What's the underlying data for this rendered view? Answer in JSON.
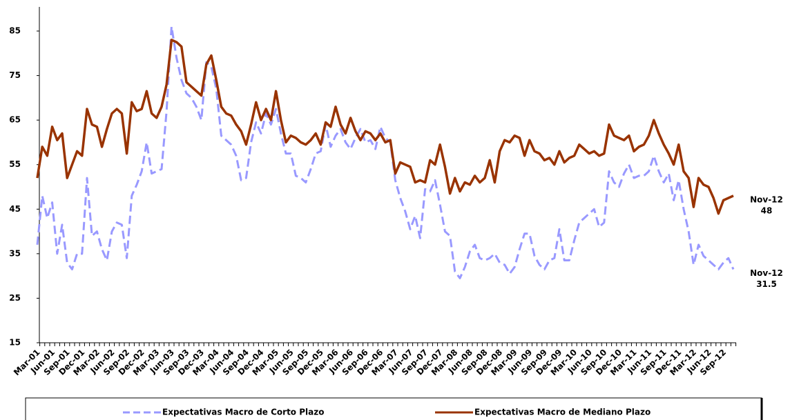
{
  "chart_data": {
    "type": "line",
    "categories": [
      "Mar-01",
      null,
      null,
      "Jun-01",
      null,
      null,
      "Sep-01",
      null,
      null,
      "Dec-01",
      null,
      null,
      "Mar-02",
      null,
      null,
      "Jun-02",
      null,
      null,
      "Sep-02",
      null,
      null,
      "Dec-02",
      null,
      null,
      "Mar-03",
      null,
      null,
      "Jun-03",
      null,
      null,
      "Sep-03",
      null,
      null,
      "Dec-03",
      null,
      null,
      "Mar-04",
      null,
      null,
      "Jun-04",
      null,
      null,
      "Sep-04",
      null,
      null,
      "Dec-04",
      null,
      null,
      "Mar-05",
      null,
      null,
      "Jun-05",
      null,
      null,
      "Sep-05",
      null,
      null,
      "Dec-05",
      null,
      null,
      "Mar-06",
      null,
      null,
      "Jun-06",
      null,
      null,
      "Sep-06",
      null,
      null,
      "Dec-06",
      null,
      null,
      "Mar-07",
      null,
      null,
      "Jun-07",
      null,
      null,
      "Sep-07",
      null,
      null,
      "Dec-07",
      null,
      null,
      "Mar-08",
      null,
      null,
      "Jun-08",
      null,
      null,
      "Sep-08",
      null,
      null,
      "Dec-08",
      null,
      null,
      "Mar-09",
      null,
      null,
      "Jun-09",
      null,
      null,
      "Sep-09",
      null,
      null,
      "Dec-09",
      null,
      null,
      "Mar-10",
      null,
      null,
      "Jun-10",
      null,
      null,
      "Sep-10",
      null,
      null,
      "Dec-10",
      null,
      null,
      "Mar-11",
      null,
      null,
      "Jun-11",
      null,
      null,
      "Sep-11",
      null,
      null,
      "Dec-11",
      null,
      null,
      "Mar-12",
      null,
      null,
      "Jun-12",
      null,
      null,
      "Sep-12",
      null,
      null
    ],
    "series": [
      {
        "name": "Expectativas Macro de Corto Plazo",
        "color": "#9999ff",
        "dashed": true,
        "values": [
          37,
          48,
          43,
          46.5,
          35,
          41.5,
          33,
          31.5,
          35,
          35,
          52,
          39,
          40,
          36,
          33.5,
          40,
          42,
          41.5,
          34,
          48,
          50.5,
          53.5,
          60,
          53,
          53.5,
          54,
          67,
          86,
          79,
          74,
          71,
          70,
          68,
          65,
          78,
          77,
          72,
          61.5,
          60.5,
          59.5,
          57,
          51.5,
          52,
          60,
          64.5,
          62,
          66.5,
          64,
          67.5,
          62,
          57.5,
          57.5,
          52.5,
          52,
          51,
          54,
          57.5,
          58,
          64,
          59,
          61.5,
          63,
          60,
          58.5,
          61,
          63,
          60,
          60.5,
          58.5,
          63.5,
          61,
          60,
          51.5,
          47.5,
          44.5,
          40.5,
          43.5,
          38.5,
          49.5,
          49,
          51.5,
          46,
          40,
          39,
          31,
          29.5,
          32,
          35.5,
          37,
          34,
          33.5,
          34,
          35,
          33,
          32.5,
          30.5,
          32,
          36,
          39.5,
          39.5,
          34.5,
          32.5,
          31.5,
          33.5,
          34,
          40.5,
          33.5,
          33.5,
          38,
          42,
          43,
          44,
          45,
          41,
          42,
          53.5,
          51,
          50,
          53,
          55,
          52,
          52.5,
          52.5,
          53.5,
          57,
          53.5,
          51,
          53,
          47,
          51.5,
          45,
          40,
          32.5,
          37,
          34.5,
          33.5,
          32.5,
          31.5,
          33,
          34,
          31.5
        ]
      },
      {
        "name": "Expectativas Macro de Mediano Plazo",
        "color": "#993300",
        "dashed": false,
        "values": [
          52,
          59,
          57,
          63.5,
          60.5,
          62,
          52,
          55,
          58,
          57,
          67.5,
          64,
          63.5,
          59,
          63,
          66.5,
          67.5,
          66.5,
          57.5,
          69,
          67,
          67.5,
          71.5,
          66.5,
          65.5,
          68,
          73,
          83,
          82.5,
          81.5,
          73.5,
          72.5,
          71.5,
          70.5,
          77.5,
          79.5,
          74,
          68,
          66.5,
          66,
          64,
          62.5,
          59.5,
          64,
          69,
          65,
          67.5,
          65,
          71.5,
          65,
          60,
          61.5,
          61,
          60,
          59.5,
          60.5,
          62,
          59.5,
          64.5,
          63.5,
          68,
          64,
          62,
          65.5,
          62.5,
          60.5,
          62.5,
          62,
          60.5,
          62,
          60,
          60.5,
          53,
          55.5,
          55,
          54.5,
          51,
          51.5,
          51,
          56,
          55,
          59.5,
          54.5,
          48.5,
          52,
          49,
          51,
          50.5,
          52.5,
          51,
          52,
          56,
          51,
          58,
          60.5,
          60,
          61.5,
          61,
          57,
          60.5,
          58,
          57.5,
          56,
          56.5,
          55,
          58,
          55.5,
          56.5,
          57,
          59.5,
          58.5,
          57.5,
          58,
          57,
          57.5,
          64,
          61.5,
          61,
          60.5,
          61.5,
          58,
          59,
          59.5,
          61.5,
          65,
          62,
          59.5,
          57.5,
          55,
          59.5,
          53.5,
          52,
          45.5,
          52,
          50.5,
          50,
          47.5,
          44,
          47,
          47.5,
          48
        ]
      }
    ],
    "annotations": [
      {
        "text": "Nov-12",
        "value": 48
      },
      {
        "text": "Nov-12",
        "value": 31.5
      }
    ],
    "ylim": [
      15,
      85
    ],
    "yticks": [
      15,
      25,
      35,
      45,
      55,
      65,
      75,
      85
    ],
    "grid": false
  }
}
